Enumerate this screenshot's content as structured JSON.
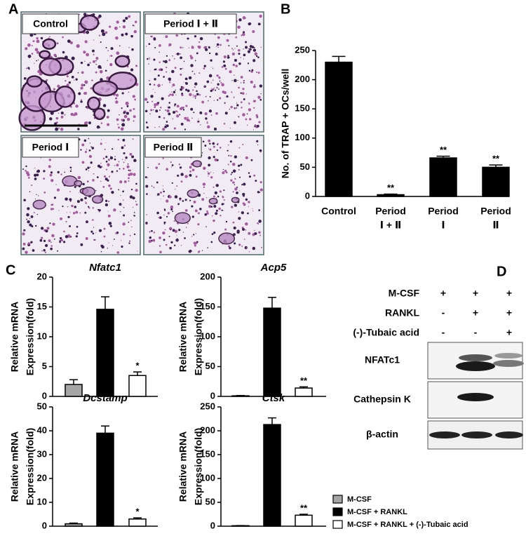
{
  "panels": [
    "A",
    "B",
    "C",
    "D"
  ],
  "micrographs": [
    "Control",
    "Period Ⅰ + Ⅱ",
    "Period Ⅰ",
    "Period Ⅱ"
  ],
  "chart_data": [
    {
      "type": "bar",
      "ylabel": [
        "No. of TRAP + OCs/well"
      ],
      "categories": [
        "Control",
        "Period",
        "Period",
        "Period"
      ],
      "category_sublabels": [
        null,
        "Ⅰ + Ⅱ",
        "Ⅰ",
        "Ⅱ"
      ],
      "values": [
        230,
        3,
        66,
        50
      ],
      "errors": [
        10,
        1,
        3,
        4
      ],
      "annotations": [
        null,
        "**",
        "**",
        "**"
      ],
      "colors": [
        "#000000",
        "#000000",
        "#000000",
        "#000000"
      ],
      "ylim": [
        0,
        250
      ],
      "yticks": [
        0,
        50,
        100,
        150,
        200,
        250
      ]
    },
    {
      "type": "bar",
      "title": "Nfatc1",
      "ylabel": [
        "Relative mRNA",
        "Expression(fold)"
      ],
      "values": [
        2,
        14.6,
        3.5
      ],
      "errors": [
        0.8,
        2.1,
        0.6
      ],
      "annotations": [
        null,
        null,
        "*"
      ],
      "colors": [
        "#a6a6a6",
        "#000000",
        "#ffffff"
      ],
      "ylim": [
        0,
        20
      ],
      "yticks": [
        0,
        5,
        10,
        15,
        20
      ]
    },
    {
      "type": "bar",
      "title": "Acp5",
      "ylabel": [
        "Relative mRNA",
        "Expression(fold)"
      ],
      "values": [
        1,
        148,
        14
      ],
      "errors": [
        0.5,
        18,
        2
      ],
      "annotations": [
        null,
        null,
        "**"
      ],
      "colors": [
        "#a6a6a6",
        "#000000",
        "#ffffff"
      ],
      "ylim": [
        0,
        200
      ],
      "yticks": [
        0,
        50,
        100,
        150,
        200
      ]
    },
    {
      "type": "bar",
      "title": "Dcstamp",
      "ylabel": [
        "Relative mRNA",
        "Expression(fold)"
      ],
      "values": [
        1,
        39,
        3
      ],
      "errors": [
        0.3,
        3,
        0.5
      ],
      "annotations": [
        null,
        null,
        "*"
      ],
      "colors": [
        "#a6a6a6",
        "#000000",
        "#ffffff"
      ],
      "ylim": [
        0,
        50
      ],
      "yticks": [
        0,
        10,
        20,
        30,
        40,
        50
      ]
    },
    {
      "type": "bar",
      "title": "Ctsk",
      "ylabel": [
        "Relative mRNA",
        "Expression(fold)"
      ],
      "values": [
        1,
        213,
        23
      ],
      "errors": [
        0.3,
        14,
        2
      ],
      "annotations": [
        null,
        null,
        "**"
      ],
      "colors": [
        "#a6a6a6",
        "#000000",
        "#ffffff"
      ],
      "ylim": [
        0,
        250
      ],
      "yticks": [
        0,
        50,
        100,
        150,
        200,
        250
      ]
    }
  ],
  "legend": [
    {
      "name": "M-CSF",
      "color": "#a6a6a6"
    },
    {
      "name": "M-CSF + RANKL",
      "color": "#000000"
    },
    {
      "name": "M-CSF + RANKL + (-)-Tubaic acid",
      "color": "#ffffff"
    }
  ],
  "blot": {
    "conditions": [
      {
        "label": "M-CSF",
        "marks": [
          "+",
          "+",
          "+"
        ]
      },
      {
        "label": "RANKL",
        "marks": [
          "-",
          "+",
          "+"
        ]
      },
      {
        "label": "(-)-Tubaic acid",
        "marks": [
          "-",
          "-",
          "+"
        ]
      }
    ],
    "bands": [
      "NFATc1",
      "Cathepsin K",
      "β-actin"
    ]
  }
}
